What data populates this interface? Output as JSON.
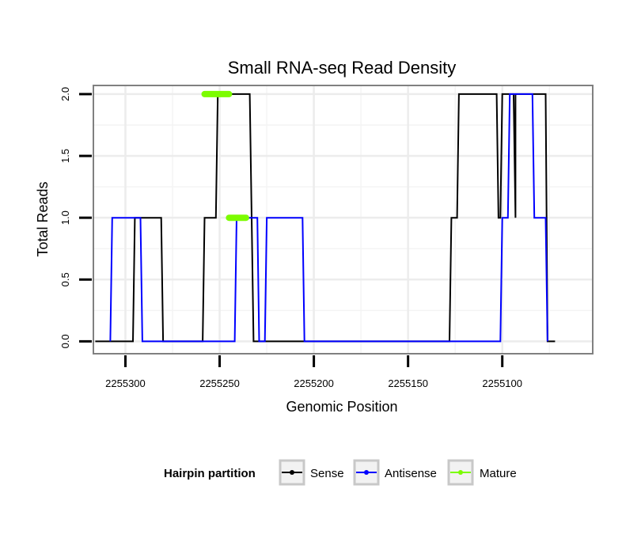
{
  "chart_data": {
    "type": "line",
    "title": "Small RNA-seq Read Density",
    "xlabel": "Genomic Position",
    "ylabel": "Total Reads",
    "xlim": [
      2255317,
      2255052
    ],
    "ylim": [
      -0.1,
      2.07
    ],
    "x_reversed": true,
    "x_ticks": [
      2255300,
      2255250,
      2255200,
      2255150,
      2255100
    ],
    "x_tick_labels": [
      "2255300",
      "2255250",
      "2255200",
      "2255150",
      "2255100"
    ],
    "y_ticks": [
      0.0,
      0.5,
      1.0,
      1.5,
      2.0
    ],
    "y_tick_labels": [
      "0.0",
      "0.5",
      "1.0",
      "1.5",
      "2.0"
    ],
    "grid": true,
    "legend": {
      "title": "Hairpin partition",
      "position": "bottom",
      "entries": [
        "Sense",
        "Antisense",
        "Mature"
      ]
    },
    "series": [
      {
        "name": "Sense",
        "color": "#000000",
        "x": [
          2255316,
          2255296,
          2255295,
          2255282,
          2255281,
          2255280,
          2255259,
          2255258,
          2255252,
          2255251,
          2255248,
          2255247,
          2255234,
          2255233,
          2255232,
          2255228,
          2255227,
          2255150,
          2255128,
          2255127,
          2255124,
          2255123,
          2255103,
          2255102,
          2255101,
          2255100,
          2255099,
          2255094,
          2255093,
          2255093,
          2255092,
          2255077,
          2255076,
          2255072
        ],
        "y": [
          0,
          0,
          1,
          1,
          1,
          0,
          0,
          1,
          1,
          2,
          2,
          2,
          2,
          1,
          0,
          0,
          0,
          0,
          0,
          1,
          1,
          2,
          2,
          1,
          1,
          2,
          2,
          2,
          1,
          2,
          2,
          2,
          0,
          0
        ]
      },
      {
        "name": "Antisense",
        "color": "#0000ff",
        "x": [
          2255308,
          2255307,
          2255292,
          2255291,
          2255242,
          2255241,
          2255230,
          2255229,
          2255226,
          2255225,
          2255206,
          2255205,
          2255129,
          2255128,
          2255101,
          2255100,
          2255097,
          2255096,
          2255084,
          2255083,
          2255077,
          2255076
        ],
        "y": [
          0,
          1,
          1,
          0,
          0,
          1,
          1,
          0,
          0,
          1,
          1,
          0,
          0,
          0,
          0,
          1,
          1,
          2,
          2,
          1,
          1,
          0
        ]
      },
      {
        "name": "Mature",
        "color": "#7cfc00",
        "segments": [
          {
            "x": [
              2255258,
              2255245
            ],
            "y": [
              2,
              2
            ]
          },
          {
            "x": [
              2255245,
              2255236
            ],
            "y": [
              1,
              1
            ]
          }
        ]
      }
    ]
  }
}
